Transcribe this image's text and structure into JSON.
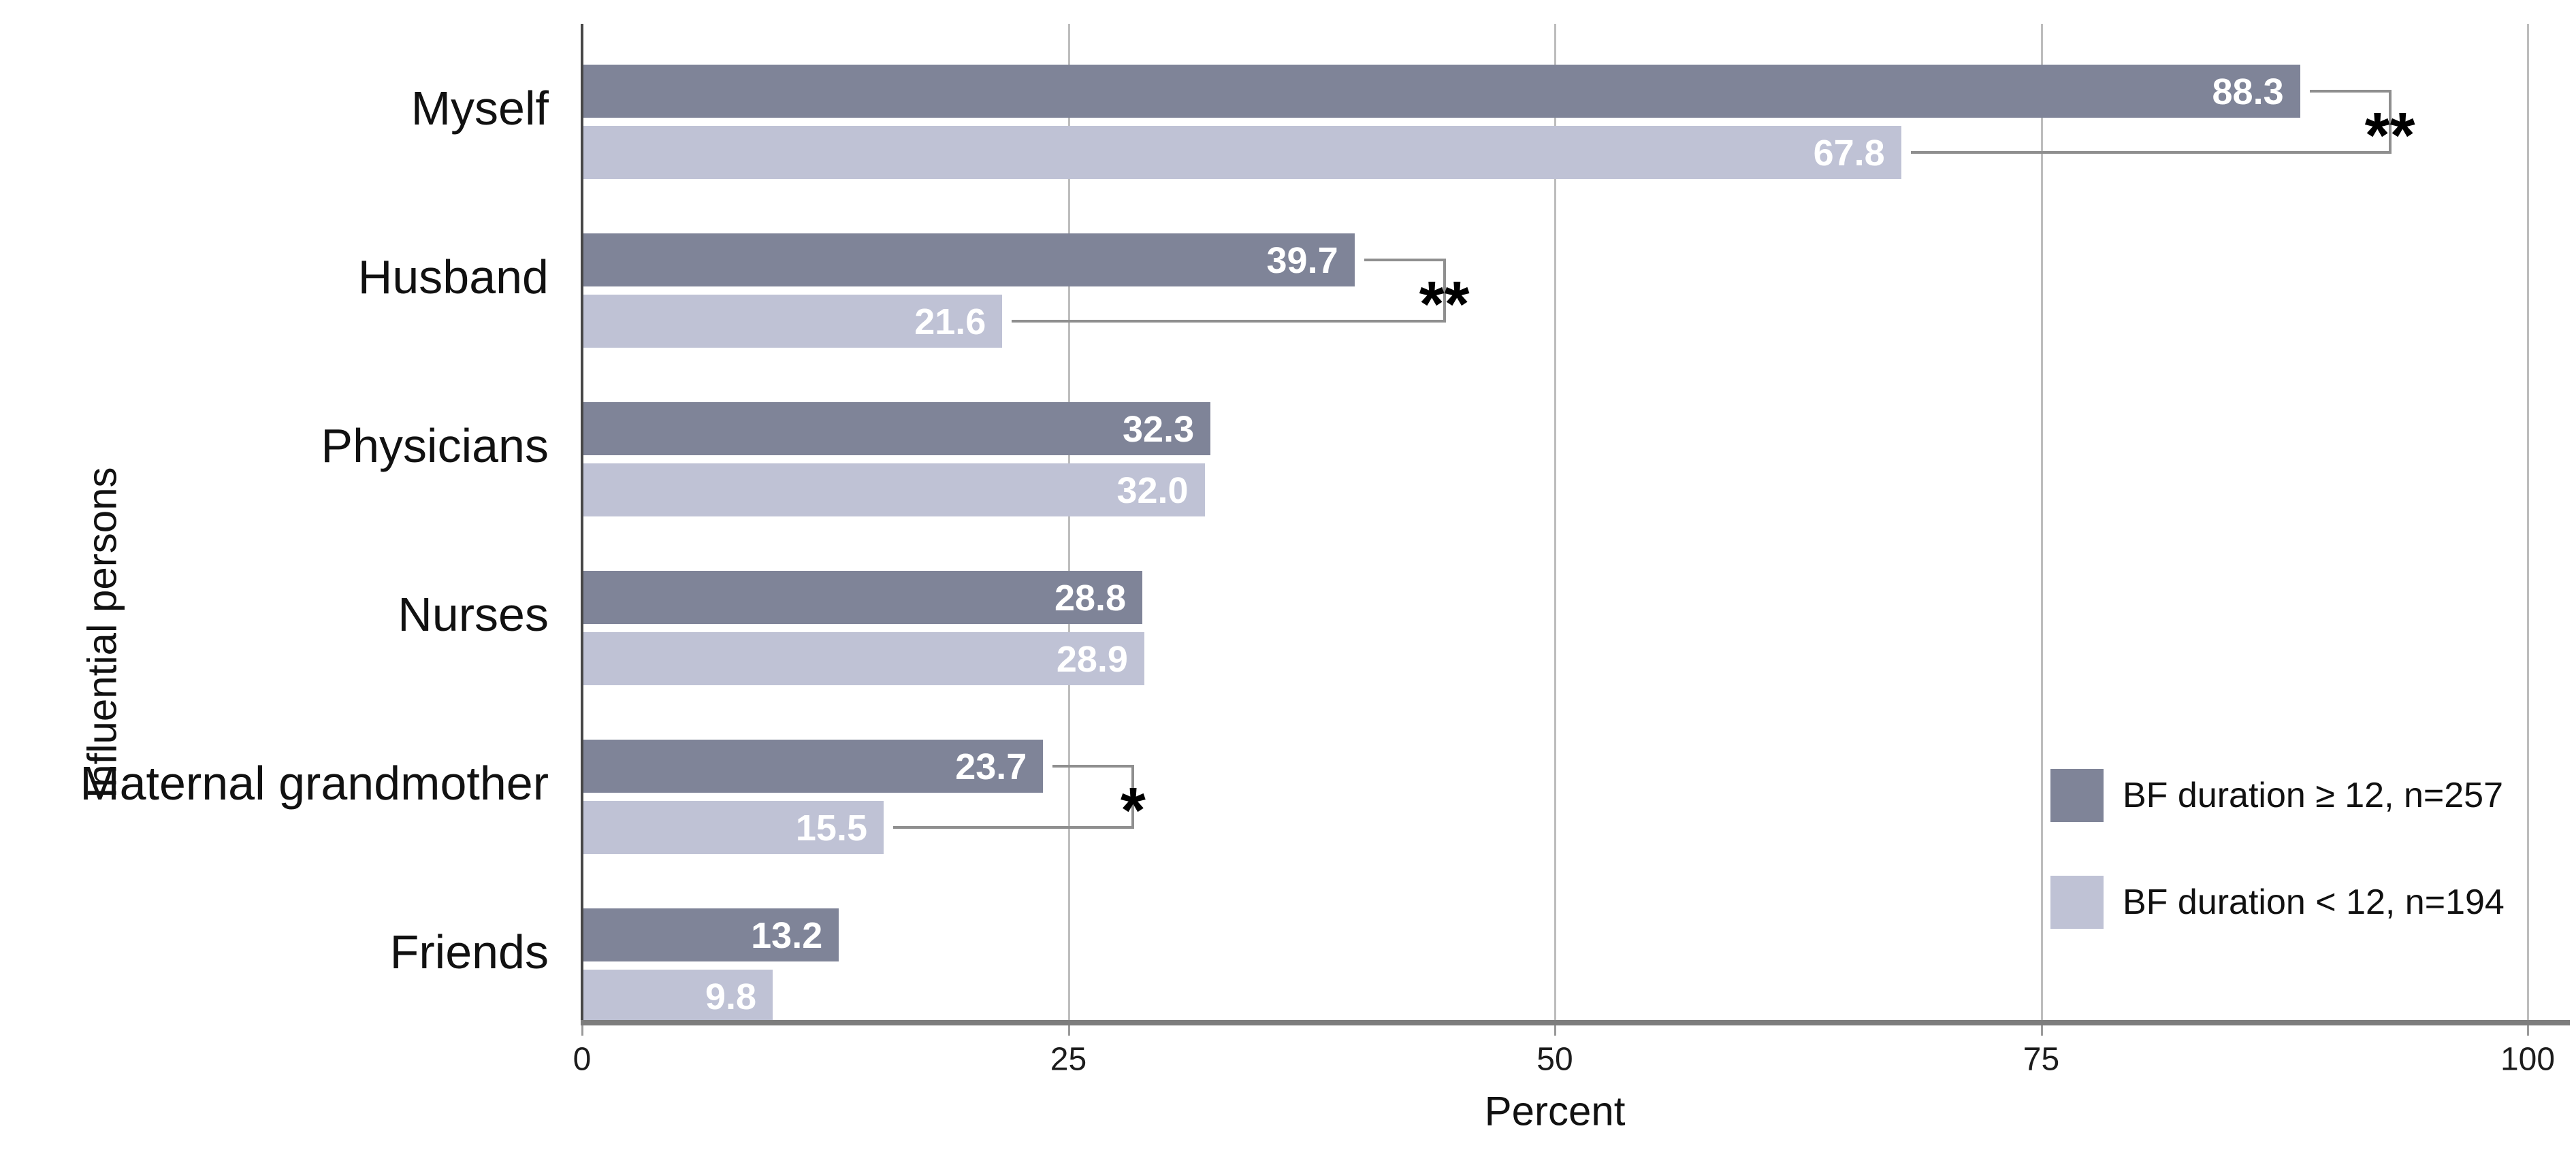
{
  "chart_data": {
    "type": "bar",
    "orientation": "horizontal",
    "xlabel": "Percent",
    "ylabel": "Influential persons",
    "xlim": [
      0,
      100
    ],
    "xticks": [
      {
        "value": 0,
        "label": "0"
      },
      {
        "value": 25,
        "label": "25"
      },
      {
        "value": 50,
        "label": "50"
      },
      {
        "value": 75,
        "label": "75"
      },
      {
        "value": 100,
        "label": "100"
      }
    ],
    "grid": {
      "vertical_gridlines_at": [
        25,
        50,
        75,
        100
      ]
    },
    "categories": [
      "Myself",
      "Husband",
      "Physicians",
      "Nurses",
      "Maternal grandmother",
      "Friends"
    ],
    "series": [
      {
        "name": "BF duration ≥ 12, n=257",
        "color": "#7f8498",
        "values": [
          88.3,
          39.7,
          32.3,
          28.8,
          23.7,
          13.2
        ],
        "labels": [
          "88.3",
          "39.7",
          "32.3",
          "28.8",
          "23.7",
          "13.2"
        ]
      },
      {
        "name": "BF duration < 12, n=194",
        "color": "#bfc2d5",
        "values": [
          67.8,
          21.6,
          32.0,
          28.9,
          15.5,
          9.8
        ],
        "labels": [
          "67.8",
          "21.6",
          "32.0",
          "28.9",
          "15.5",
          "9.8"
        ]
      }
    ],
    "significance_markers": [
      {
        "category_index": 0,
        "category": "Myself",
        "marker": "**"
      },
      {
        "category_index": 1,
        "category": "Husband",
        "marker": "**"
      },
      {
        "category_index": 4,
        "category": "Maternal grandmother",
        "marker": "*"
      }
    ],
    "legend_position": "inside-right",
    "value_label_color": "#ffffff",
    "accent_colors": {
      "gridline": "#bdbdbd",
      "baseline": "#7d7d7d",
      "y_axis_line": "#474747",
      "bracket_line": "#8f8f8f"
    }
  },
  "legend": {
    "items": [
      {
        "label": "BF duration ≥ 12, n=257",
        "color": "#7f8498"
      },
      {
        "label": "BF duration < 12, n=194",
        "color": "#bfc2d5"
      }
    ]
  },
  "axis_titles": {
    "x": "Percent",
    "y": "Influential persons"
  }
}
